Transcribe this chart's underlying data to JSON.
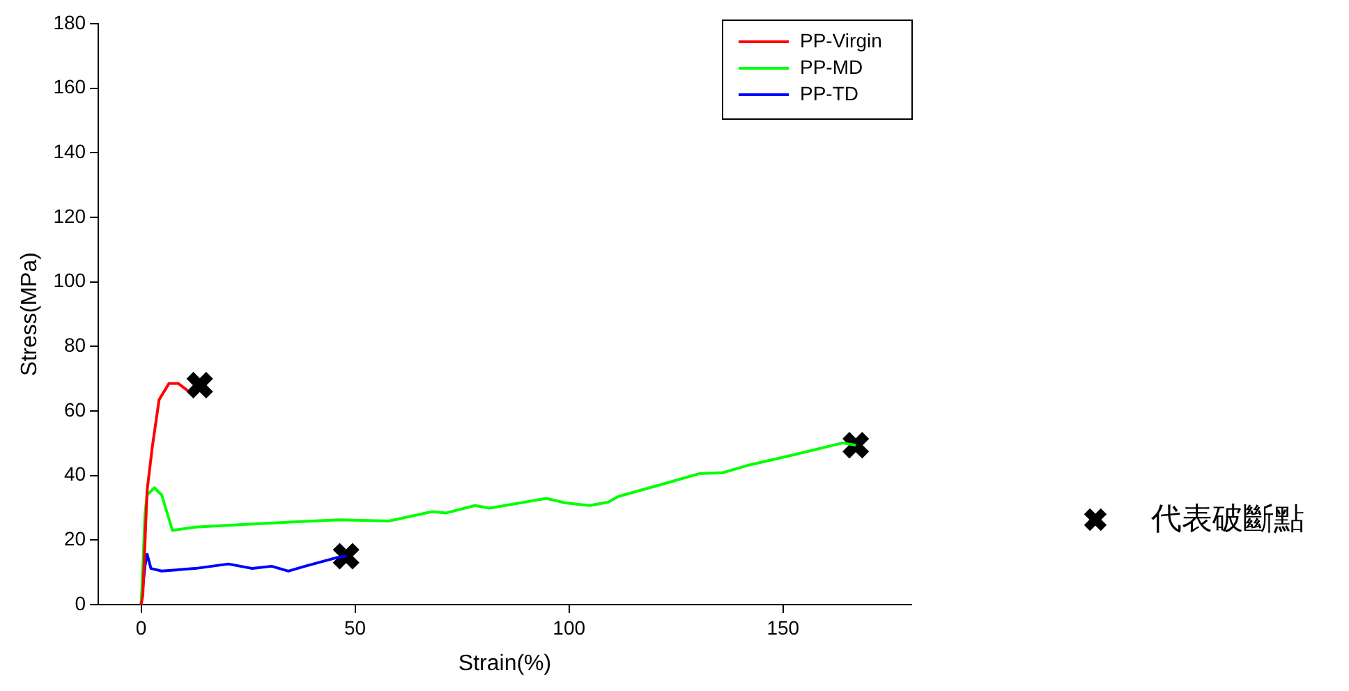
{
  "chart_data": {
    "type": "line",
    "xlabel": "Strain(%)",
    "ylabel": "Stress(MPa)",
    "xlim": [
      -10,
      180
    ],
    "xticks": [
      0,
      50,
      100,
      150
    ],
    "ylim": [
      0,
      180
    ],
    "yticks": [
      0,
      20,
      40,
      60,
      80,
      100,
      120,
      140,
      160,
      180
    ],
    "grid": false,
    "legend": "top right",
    "marker": "none",
    "series": [
      {
        "name": "PP-Virgin",
        "color": "#ff0000",
        "x": [
          0,
          0.4,
          1.4,
          2.6,
          4.2,
          6.5,
          8.7,
          10.9
        ],
        "values": [
          0,
          3,
          35.4,
          48.7,
          63.5,
          68.5,
          68.5,
          66.3
        ]
      },
      {
        "name": "PP-MD",
        "color": "#00ff00",
        "x": [
          0,
          0.3,
          0.9,
          1.4,
          3.1,
          4.8,
          6.5,
          7.3,
          12.6,
          23.8,
          34.9,
          46.1,
          57.9,
          68,
          71.3,
          78,
          81.4,
          94.7,
          99.2,
          104.8,
          109.2,
          111.5,
          122.6,
          130.5,
          136,
          141.6,
          152.8,
          163.9,
          167
        ],
        "values": [
          0,
          8,
          28,
          34,
          36.2,
          34,
          26.6,
          23,
          24,
          24.8,
          25.6,
          26.3,
          25.9,
          28.8,
          28.4,
          30.7,
          29.9,
          32.9,
          31.5,
          30.7,
          31.8,
          33.5,
          37.6,
          40.6,
          40.9,
          43.1,
          46.5,
          50.1,
          49.4
        ]
      },
      {
        "name": "PP-TD",
        "color": "#0000ff",
        "x": [
          0,
          0.9,
          1.4,
          2.3,
          4.8,
          12.6,
          20.4,
          26,
          30.5,
          34.4,
          38.3,
          45.5,
          47.9
        ],
        "values": [
          0,
          12,
          15.6,
          11.2,
          10.4,
          11.2,
          12.6,
          11.2,
          11.9,
          10.4,
          11.9,
          14.5,
          15
        ]
      },
      {
        "name": "代表破斷點",
        "type": "scatter",
        "marker": "cross",
        "color": "#000000",
        "x": [
          13.7,
          167,
          47.9
        ],
        "values": [
          68,
          49.4,
          15
        ]
      }
    ]
  }
}
